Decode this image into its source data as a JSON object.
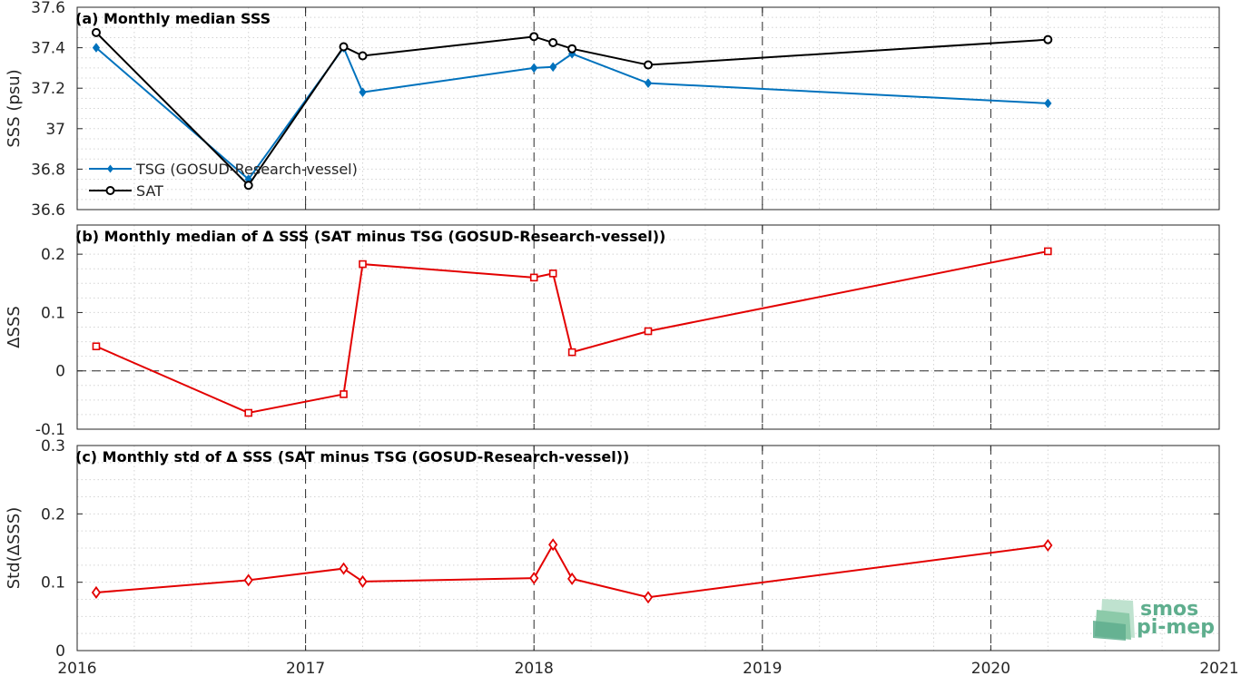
{
  "chart_data": [
    {
      "type": "line",
      "title": "(a) Monthly median SSS",
      "ylabel": "SSS (psu)",
      "xlim": [
        2016,
        2021
      ],
      "ylim": [
        36.6,
        37.6
      ],
      "x_ticks": [
        "2016",
        "2017",
        "2018",
        "2019",
        "2020",
        "2021"
      ],
      "y_ticks": [
        "36.6",
        "36.8",
        "37",
        "37.2",
        "37.4",
        "37.6"
      ],
      "grid": true,
      "legend_position": "lower-left",
      "x": [
        "2016-02",
        "2016-10",
        "2017-03",
        "2017-04",
        "2018-01",
        "2018-02",
        "2018-03",
        "2018-07",
        "2020-04"
      ],
      "series": [
        {
          "name": "TSG (GOSUD-Research-vessel)",
          "color": "#0072bd",
          "marker": "diamond-filled",
          "values": [
            37.4,
            36.75,
            37.4,
            37.18,
            37.3,
            37.305,
            37.37,
            37.225,
            37.125
          ]
        },
        {
          "name": "SAT",
          "color": "#000000",
          "marker": "circle-open",
          "values": [
            37.475,
            36.72,
            37.405,
            37.36,
            37.455,
            37.425,
            37.395,
            37.315,
            37.44
          ]
        }
      ]
    },
    {
      "type": "line",
      "title": "(b) Monthly median of Δ SSS (SAT minus TSG (GOSUD-Research-vessel))",
      "ylabel": "ΔSSS",
      "xlim": [
        2016,
        2021
      ],
      "ylim": [
        -0.1,
        0.25
      ],
      "y_ticks": [
        "-0.1",
        "0",
        "0.1",
        "0.2"
      ],
      "grid": true,
      "zero_line": "dashed",
      "x": [
        "2016-02",
        "2016-10",
        "2017-03",
        "2017-04",
        "2018-01",
        "2018-02",
        "2018-03",
        "2018-07",
        "2020-04"
      ],
      "series": [
        {
          "color": "#e30000",
          "marker": "square-open",
          "values": [
            0.042,
            -0.072,
            -0.04,
            0.183,
            0.16,
            0.167,
            0.032,
            0.068,
            0.205
          ]
        }
      ]
    },
    {
      "type": "line",
      "title": "(c) Monthly std of Δ SSS (SAT minus TSG (GOSUD-Research-vessel))",
      "ylabel": "Std(ΔSSS)",
      "xlim": [
        2016,
        2021
      ],
      "ylim": [
        0,
        0.3
      ],
      "y_ticks": [
        "0",
        "0.1",
        "0.2",
        "0.3"
      ],
      "grid": true,
      "x": [
        "2016-02",
        "2016-10",
        "2017-03",
        "2017-04",
        "2018-01",
        "2018-02",
        "2018-03",
        "2018-07",
        "2020-04"
      ],
      "series": [
        {
          "color": "#e30000",
          "marker": "diamond-open",
          "values": [
            0.085,
            0.103,
            0.12,
            0.101,
            0.106,
            0.155,
            0.105,
            0.078,
            0.154
          ]
        }
      ]
    }
  ],
  "logo": {
    "line1": "smos",
    "line2": "pi-mep"
  }
}
